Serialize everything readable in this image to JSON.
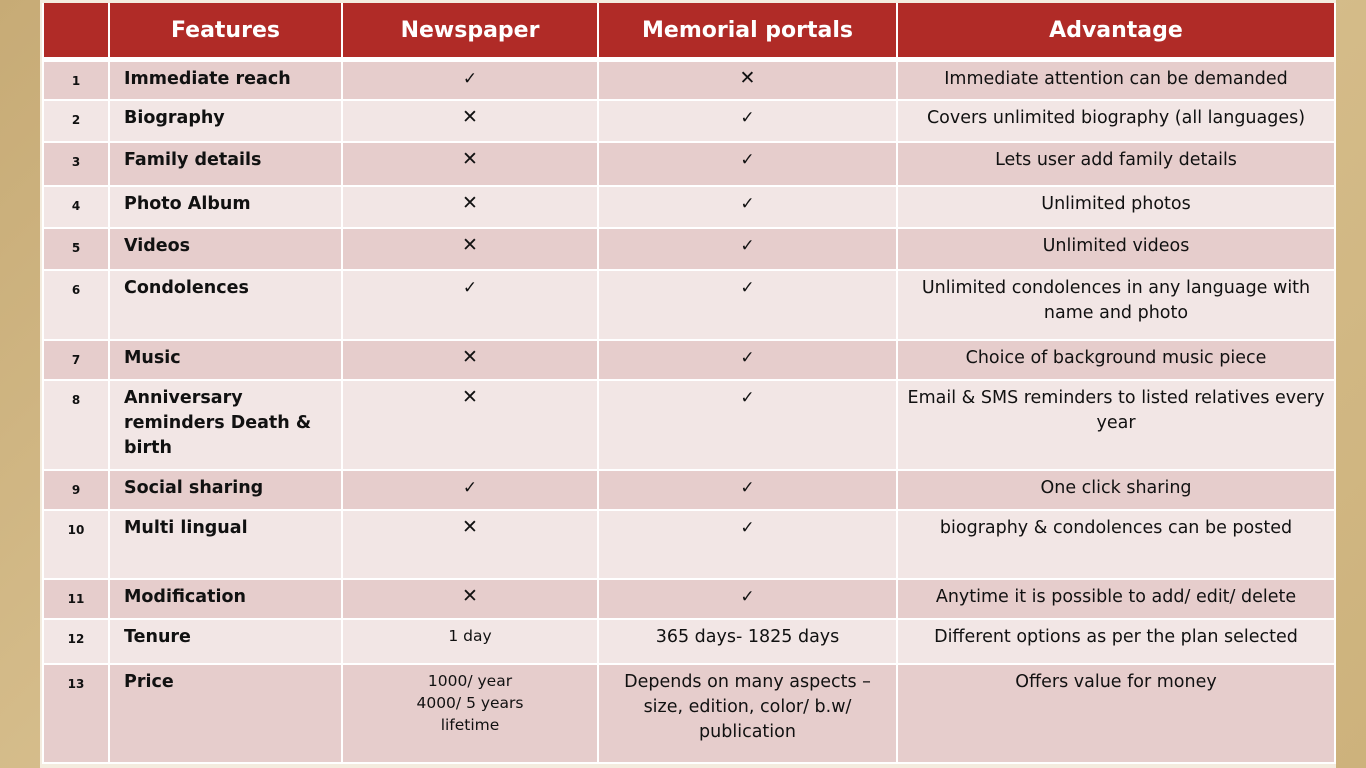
{
  "headers": [
    "",
    "Features",
    "Newspaper",
    "Memorial portals",
    "Advantage"
  ],
  "symbols": {
    "yes": "✓",
    "no": "✕"
  },
  "rows": [
    {
      "num": "1",
      "feature": "Immediate reach",
      "newspaper": "✓",
      "portal": "✕",
      "advantage": "Immediate attention can be demanded"
    },
    {
      "num": "2",
      "feature": "Biography",
      "newspaper": "✕",
      "portal": "✓",
      "advantage": "Covers unlimited biography  (all languages)"
    },
    {
      "num": "3",
      "feature": "Family details",
      "newspaper": "✕",
      "portal": "✓",
      "advantage": "Lets user add family details"
    },
    {
      "num": "4",
      "feature": "Photo Album",
      "newspaper": "✕",
      "portal": "✓",
      "advantage": "Unlimited photos"
    },
    {
      "num": "5",
      "feature": "Videos",
      "newspaper": "✕",
      "portal": "✓",
      "advantage": "Unlimited videos"
    },
    {
      "num": "6",
      "feature": "Condolences",
      "newspaper": "✓",
      "portal": "✓",
      "advantage": "Unlimited condolences in any language with name and photo"
    },
    {
      "num": "7",
      "feature": "Music",
      "newspaper": "✕",
      "portal": "✓",
      "advantage": "Choice of background music piece"
    },
    {
      "num": "8",
      "feature": "Anniversary reminders Death & birth",
      "newspaper": "✕",
      "portal": "✓",
      "advantage": "Email & SMS reminders to listed relatives every year"
    },
    {
      "num": "9",
      "feature": "Social sharing",
      "newspaper": "✓",
      "portal": "✓",
      "advantage": "One click sharing"
    },
    {
      "num": "10",
      "feature": "Multi lingual",
      "newspaper": "✕",
      "portal": "✓",
      "advantage": "biography & condolences can be posted"
    },
    {
      "num": "11",
      "feature": "Modification",
      "newspaper": "✕",
      "portal": "✓",
      "advantage": "Anytime it is possible to add/ edit/ delete"
    },
    {
      "num": "12",
      "feature": "Tenure",
      "newspaper": "1 day",
      "portal": "365 days- 1825 days",
      "advantage": "Different options as per  the plan selected"
    },
    {
      "num": "13",
      "feature": "Price",
      "newspaper": "1000/ year\n4000/ 5 years\nlifetime",
      "portal": "Depends on many aspects – size, edition, color/ b.w/ publication",
      "advantage": "Offers value for money"
    }
  ]
}
